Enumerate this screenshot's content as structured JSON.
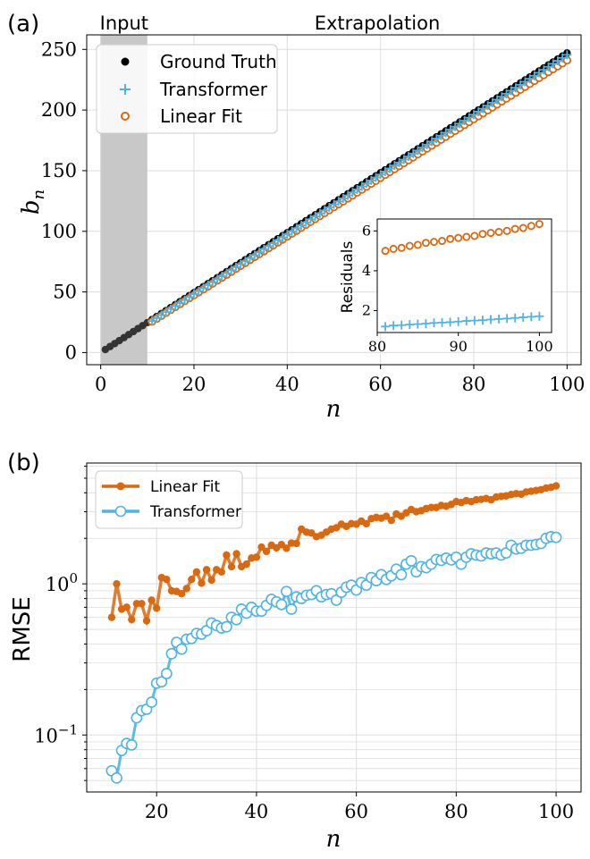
{
  "panel_a": {
    "label": "(a)",
    "region_input": "Input",
    "region_extrapolation": "Extrapolation",
    "xlabel": "n",
    "ylabel_base": "b",
    "ylabel_sub": "n",
    "x_ticks": [
      "0",
      "20",
      "40",
      "60",
      "80",
      "100"
    ],
    "y_ticks": [
      "0",
      "50",
      "100",
      "150",
      "200",
      "250"
    ],
    "legend": [
      "Ground Truth",
      "Transformer",
      "Linear Fit"
    ],
    "inset": {
      "ylabel": "Residuals",
      "x_ticks": [
        "80",
        "90",
        "100"
      ],
      "y_ticks": [
        "2",
        "4",
        "6"
      ]
    }
  },
  "panel_b": {
    "label": "(b)",
    "xlabel": "n",
    "ylabel": "RMSE",
    "x_ticks": [
      "20",
      "40",
      "60",
      "80",
      "100"
    ],
    "y_ticks": [
      {
        "base": "10",
        "exp": "−1"
      },
      {
        "base": "10",
        "exp": "0"
      }
    ],
    "legend": [
      "Linear Fit",
      "Transformer"
    ]
  },
  "colors": {
    "ground_truth": "#000000",
    "transformer": "#4fb3e3",
    "linear_fit": "#d9680f",
    "input_shade": "#c8c8c8",
    "grid": "#dddddd"
  },
  "chart_data": [
    {
      "type": "scatter",
      "panel": "a",
      "xlabel": "n",
      "ylabel": "b_n",
      "xlim": [
        -3,
        103
      ],
      "ylim": [
        -10,
        262
      ],
      "grid": true,
      "legend_position": "top-left",
      "input_region": [
        0,
        10
      ],
      "series": [
        {
          "name": "Ground Truth",
          "x_range": [
            1,
            100
          ],
          "step": 1,
          "y_formula": "2.47*n",
          "y_start": 2.5,
          "y_end": 247
        },
        {
          "name": "Transformer",
          "x_range": [
            11,
            100
          ],
          "step": 1,
          "y_start": 26,
          "y_end": 245.5
        },
        {
          "name": "Linear Fit",
          "x_range": [
            11,
            100
          ],
          "step": 1,
          "y_start": 25.5,
          "y_end": 241
        }
      ]
    },
    {
      "type": "scatter",
      "panel": "a-inset",
      "ylabel": "Residuals",
      "xlim": [
        80,
        101.5
      ],
      "ylim": [
        0.9,
        6.6
      ],
      "series": [
        {
          "name": "Linear Fit",
          "x": [
            81,
            82,
            83,
            84,
            85,
            86,
            87,
            88,
            89,
            90,
            91,
            92,
            93,
            94,
            95,
            96,
            97,
            98,
            99,
            100
          ],
          "values": [
            5.0,
            5.1,
            5.15,
            5.25,
            5.3,
            5.4,
            5.45,
            5.5,
            5.6,
            5.65,
            5.7,
            5.75,
            5.85,
            5.9,
            5.95,
            6.0,
            6.1,
            6.15,
            6.25,
            6.35
          ]
        },
        {
          "name": "Transformer",
          "x": [
            81,
            82,
            83,
            84,
            85,
            86,
            87,
            88,
            89,
            90,
            91,
            92,
            93,
            94,
            95,
            96,
            97,
            98,
            99,
            100
          ],
          "values": [
            1.2,
            1.25,
            1.27,
            1.3,
            1.32,
            1.35,
            1.38,
            1.4,
            1.42,
            1.45,
            1.48,
            1.5,
            1.52,
            1.55,
            1.58,
            1.6,
            1.63,
            1.66,
            1.69,
            1.72
          ]
        }
      ]
    },
    {
      "type": "line",
      "panel": "b",
      "xlabel": "n",
      "ylabel": "RMSE",
      "yscale": "log",
      "xlim": [
        6,
        105
      ],
      "ylim": [
        0.042,
        6.3
      ],
      "grid": true,
      "legend_position": "top-left",
      "x": [
        11,
        12,
        13,
        14,
        15,
        16,
        17,
        18,
        19,
        20,
        21,
        22,
        23,
        24,
        25,
        26,
        27,
        28,
        29,
        30,
        31,
        32,
        33,
        34,
        35,
        36,
        37,
        38,
        39,
        40,
        41,
        42,
        43,
        44,
        45,
        46,
        47,
        48,
        49,
        50,
        51,
        52,
        53,
        54,
        55,
        56,
        57,
        58,
        59,
        60,
        61,
        62,
        63,
        64,
        65,
        66,
        67,
        68,
        69,
        70,
        71,
        72,
        73,
        74,
        75,
        76,
        77,
        78,
        79,
        80,
        81,
        82,
        83,
        84,
        85,
        86,
        87,
        88,
        89,
        90,
        91,
        92,
        93,
        94,
        95,
        96,
        97,
        98,
        99,
        100
      ],
      "series": [
        {
          "name": "Linear Fit",
          "values": [
            0.6,
            1.0,
            0.68,
            0.7,
            0.58,
            0.74,
            0.74,
            0.57,
            0.78,
            0.69,
            1.1,
            1.07,
            0.9,
            0.89,
            0.86,
            0.93,
            1.07,
            1.2,
            1.01,
            1.24,
            1.06,
            1.24,
            1.2,
            1.55,
            1.3,
            1.58,
            1.3,
            1.35,
            1.48,
            1.5,
            1.75,
            1.64,
            1.8,
            1.73,
            1.82,
            1.72,
            1.86,
            1.85,
            2.3,
            2.2,
            2.17,
            2.05,
            2.1,
            2.2,
            2.3,
            2.35,
            2.48,
            2.4,
            2.5,
            2.48,
            2.6,
            2.5,
            2.7,
            2.75,
            2.72,
            2.8,
            2.63,
            2.9,
            2.8,
            2.95,
            3.1,
            3.0,
            3.05,
            3.15,
            3.2,
            3.2,
            3.3,
            3.26,
            3.35,
            3.5,
            3.45,
            3.55,
            3.5,
            3.6,
            3.62,
            3.67,
            3.6,
            3.75,
            3.79,
            3.82,
            3.9,
            3.95,
            3.92,
            4.05,
            4.1,
            4.15,
            4.2,
            4.3,
            4.35,
            4.45
          ]
        },
        {
          "name": "Transformer",
          "values": [
            0.058,
            0.052,
            0.079,
            0.088,
            0.086,
            0.13,
            0.145,
            0.148,
            0.165,
            0.22,
            0.225,
            0.255,
            0.345,
            0.41,
            0.37,
            0.43,
            0.435,
            0.47,
            0.465,
            0.49,
            0.55,
            0.53,
            0.51,
            0.52,
            0.6,
            0.58,
            0.68,
            0.64,
            0.7,
            0.66,
            0.66,
            0.72,
            0.79,
            0.76,
            0.73,
            0.89,
            0.68,
            0.82,
            0.8,
            0.84,
            0.85,
            0.9,
            0.82,
            0.85,
            0.86,
            0.78,
            0.88,
            0.95,
            0.98,
            0.91,
            1.02,
            0.98,
            1.1,
            1.05,
            1.15,
            1.07,
            1.13,
            1.25,
            1.15,
            1.35,
            1.42,
            1.2,
            1.3,
            1.28,
            1.35,
            1.45,
            1.43,
            1.48,
            1.44,
            1.5,
            1.35,
            1.5,
            1.58,
            1.55,
            1.53,
            1.6,
            1.58,
            1.6,
            1.55,
            1.6,
            1.8,
            1.7,
            1.72,
            1.8,
            1.8,
            1.82,
            1.85,
            2.0,
            2.05,
            2.03
          ]
        }
      ]
    }
  ]
}
